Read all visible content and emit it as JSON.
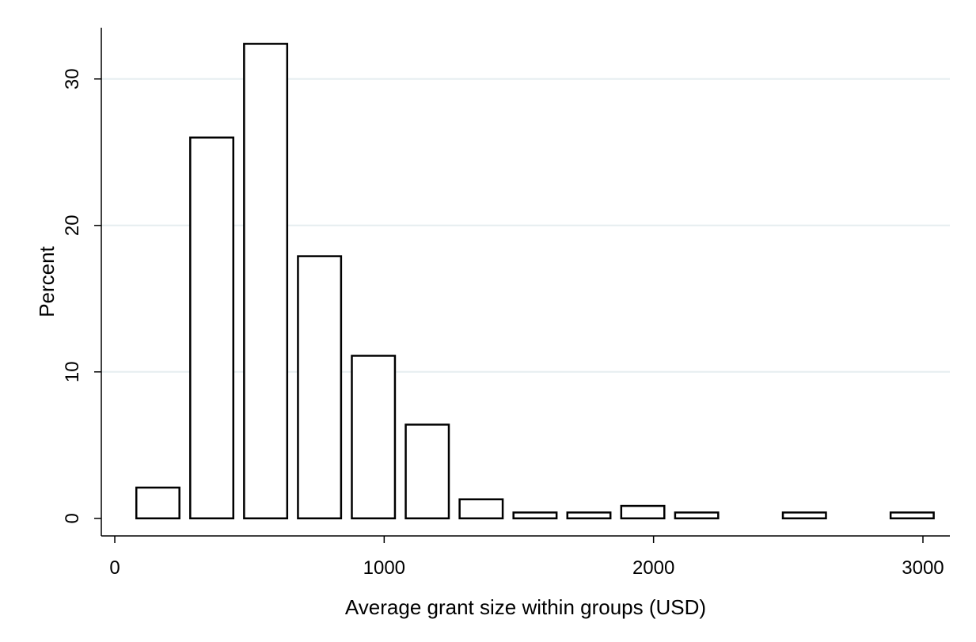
{
  "chart_data": {
    "type": "bar",
    "title": "",
    "xlabel": "Average grant size within groups (USD)",
    "ylabel": "Percent",
    "xlim": [
      -50,
      3100
    ],
    "ylim": [
      -1.2,
      33.5
    ],
    "xticks": [
      0,
      1000,
      2000,
      3000
    ],
    "xtick_labels": [
      "0",
      "1000",
      "2000",
      "3000"
    ],
    "yticks": [
      0,
      10,
      20,
      30
    ],
    "ytick_labels": [
      "0",
      "10",
      "20",
      "30"
    ],
    "grid": true,
    "bars": [
      {
        "x0": 80,
        "x1": 240,
        "value": 2.1
      },
      {
        "x0": 280,
        "x1": 440,
        "value": 26.0
      },
      {
        "x0": 480,
        "x1": 640,
        "value": 32.4
      },
      {
        "x0": 680,
        "x1": 840,
        "value": 17.9
      },
      {
        "x0": 880,
        "x1": 1040,
        "value": 11.1
      },
      {
        "x0": 1080,
        "x1": 1240,
        "value": 6.4
      },
      {
        "x0": 1280,
        "x1": 1440,
        "value": 1.3
      },
      {
        "x0": 1480,
        "x1": 1640,
        "value": 0.4
      },
      {
        "x0": 1680,
        "x1": 1840,
        "value": 0.4
      },
      {
        "x0": 1880,
        "x1": 2040,
        "value": 0.85
      },
      {
        "x0": 2080,
        "x1": 2240,
        "value": 0.4
      },
      {
        "x0": 2480,
        "x1": 2640,
        "value": 0.4
      },
      {
        "x0": 2880,
        "x1": 3040,
        "value": 0.4
      }
    ],
    "colors": {
      "bar_fill": "#ffffff",
      "bar_stroke": "#000000",
      "grid": "#e6eef0"
    }
  }
}
